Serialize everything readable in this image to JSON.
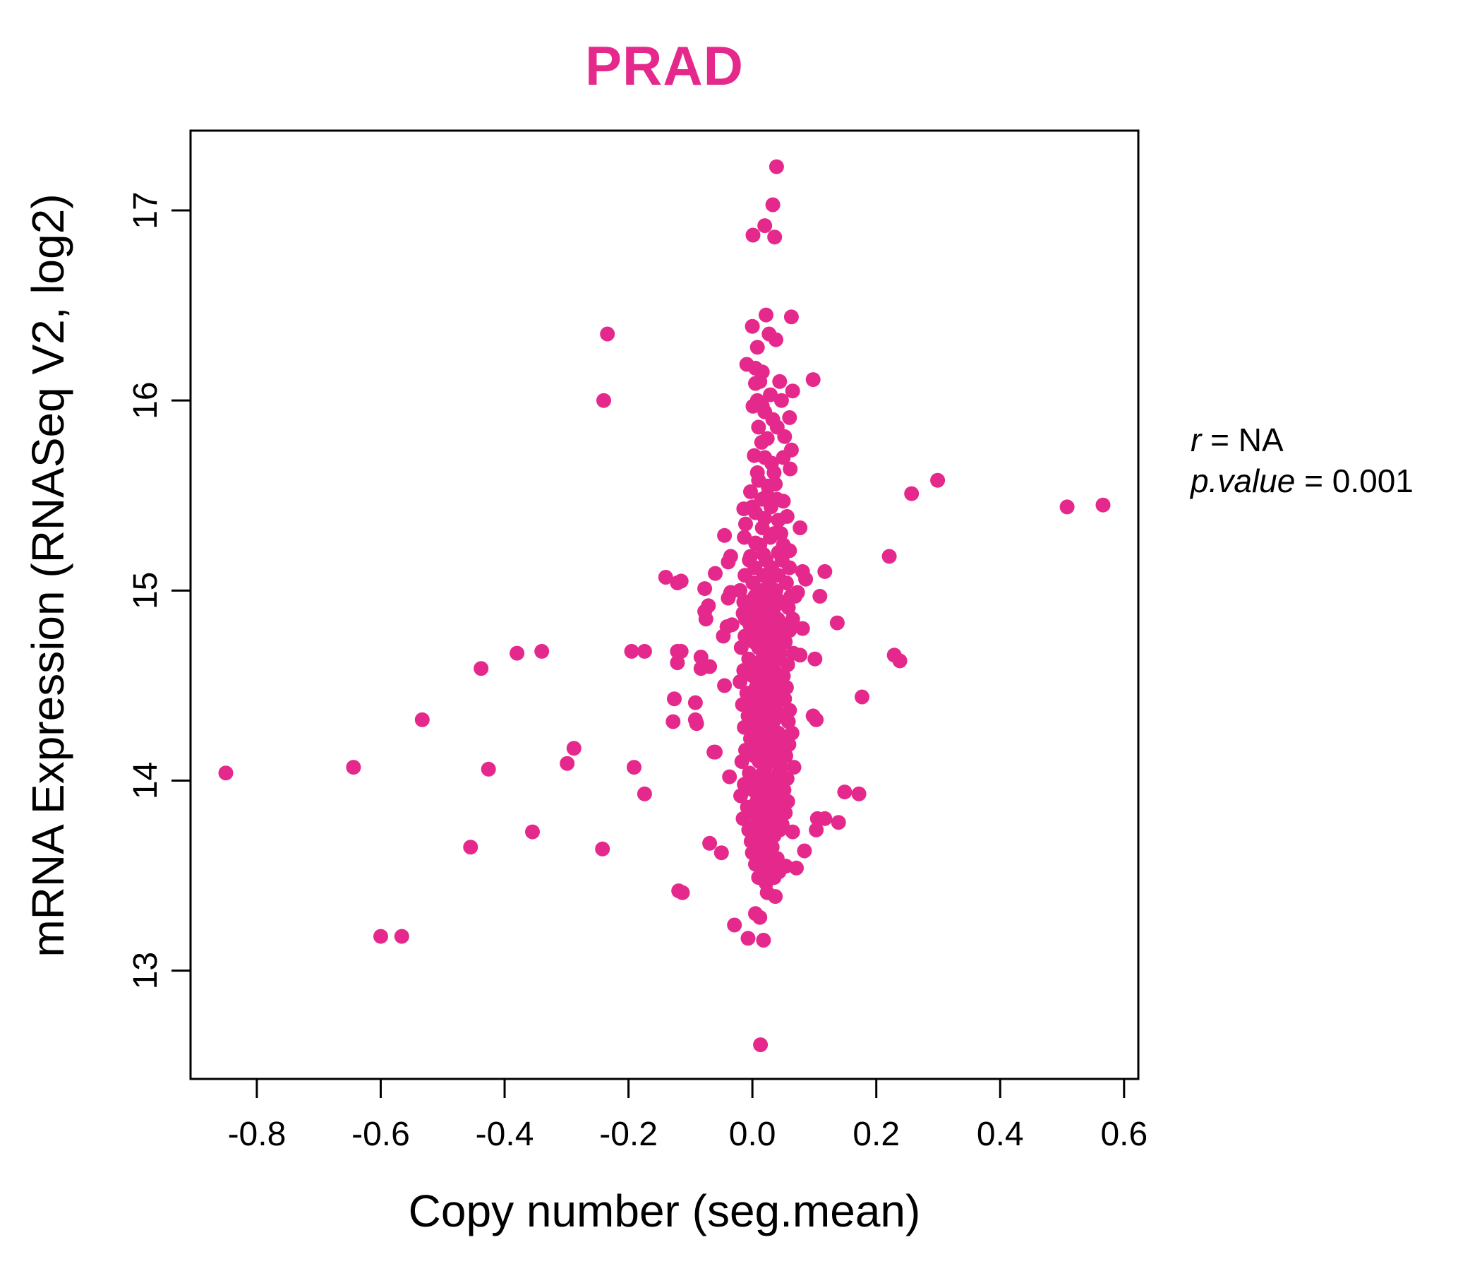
{
  "title": {
    "text": "PRAD"
  },
  "annotation": {
    "r_label": "r",
    "r_value": " = NA",
    "p_label": "p.value",
    "p_value": " = 0.001"
  },
  "colors": {
    "accent": "#E5298C",
    "axis": "#000000"
  },
  "chart_data": {
    "type": "scatter",
    "title": "PRAD",
    "xlabel": "Copy number (seg.mean)",
    "ylabel": "mRNA Expression (RNASeq V2, log2)",
    "xlim": [
      -0.907,
      0.623
    ],
    "ylim": [
      12.43,
      17.42
    ],
    "x_ticks": [
      {
        "v": -0.8,
        "label": "-0.8"
      },
      {
        "v": -0.6,
        "label": "-0.6"
      },
      {
        "v": -0.4,
        "label": "-0.4"
      },
      {
        "v": -0.2,
        "label": "-0.2"
      },
      {
        "v": 0.0,
        "label": "0.0"
      },
      {
        "v": 0.2,
        "label": "0.2"
      },
      {
        "v": 0.4,
        "label": "0.4"
      },
      {
        "v": 0.6,
        "label": "0.6"
      }
    ],
    "y_ticks": [
      {
        "v": 13,
        "label": "13"
      },
      {
        "v": 14,
        "label": "14"
      },
      {
        "v": 15,
        "label": "15"
      },
      {
        "v": 16,
        "label": "16"
      },
      {
        "v": 17,
        "label": "17"
      }
    ],
    "grid": false,
    "legend": "none",
    "point_color": "#E5298C",
    "point_radius_px": 10.5,
    "stats": {
      "r": "NA",
      "p_value": 0.001
    },
    "points": [
      [
        -0.85,
        14.04
      ],
      [
        -0.644,
        14.07
      ],
      [
        -0.6,
        13.18
      ],
      [
        -0.566,
        13.18
      ],
      [
        -0.533,
        14.32
      ],
      [
        -0.455,
        13.65
      ],
      [
        -0.438,
        14.59
      ],
      [
        -0.426,
        14.06
      ],
      [
        -0.38,
        14.67
      ],
      [
        -0.355,
        13.73
      ],
      [
        -0.34,
        14.68
      ],
      [
        -0.299,
        14.09
      ],
      [
        -0.288,
        14.17
      ],
      [
        -0.242,
        13.64
      ],
      [
        -0.24,
        16.0
      ],
      [
        -0.234,
        16.35
      ],
      [
        -0.195,
        14.68
      ],
      [
        -0.191,
        14.07
      ],
      [
        -0.174,
        14.68
      ],
      [
        -0.174,
        13.93
      ],
      [
        -0.14,
        15.07
      ],
      [
        -0.128,
        14.31
      ],
      [
        -0.126,
        14.43
      ],
      [
        -0.121,
        15.04
      ],
      [
        -0.121,
        14.68
      ],
      [
        -0.121,
        14.62
      ],
      [
        -0.119,
        13.42
      ],
      [
        -0.115,
        15.05
      ],
      [
        -0.115,
        14.68
      ],
      [
        -0.113,
        13.41
      ],
      [
        -0.092,
        14.41
      ],
      [
        -0.092,
        14.32
      ],
      [
        -0.09,
        14.3
      ],
      [
        -0.083,
        14.65
      ],
      [
        -0.083,
        14.59
      ],
      [
        -0.077,
        15.01
      ],
      [
        -0.077,
        14.89
      ],
      [
        -0.075,
        14.85
      ],
      [
        -0.071,
        14.92
      ],
      [
        -0.069,
        14.6
      ],
      [
        -0.069,
        13.67
      ],
      [
        -0.062,
        14.15
      ],
      [
        -0.06,
        15.09
      ],
      [
        -0.06,
        14.15
      ],
      [
        -0.05,
        13.62
      ],
      [
        -0.047,
        14.76
      ],
      [
        -0.045,
        15.29
      ],
      [
        -0.045,
        14.5
      ],
      [
        -0.041,
        14.81
      ],
      [
        -0.039,
        15.15
      ],
      [
        -0.039,
        14.96
      ],
      [
        -0.037,
        14.02
      ],
      [
        -0.035,
        15.18
      ],
      [
        -0.035,
        14.99
      ],
      [
        -0.033,
        14.82
      ],
      [
        -0.029,
        13.24
      ],
      [
        -0.014,
        15.43
      ],
      [
        -0.014,
        14.94
      ],
      [
        -0.013,
        15.28
      ],
      [
        -0.011,
        15.35
      ],
      [
        -0.011,
        14.85
      ],
      [
        -0.007,
        13.17
      ],
      [
        -0.003,
        15.52
      ],
      [
        -0.003,
        15.18
      ],
      [
        0.039,
        17.23
      ],
      [
        0.033,
        17.03
      ],
      [
        0.02,
        16.92
      ],
      [
        0.001,
        16.87
      ],
      [
        0.036,
        16.86
      ],
      [
        0.022,
        16.45
      ],
      [
        0.063,
        16.44
      ],
      [
        0.0,
        16.39
      ],
      [
        0.027,
        16.35
      ],
      [
        0.038,
        16.32
      ],
      [
        0.008,
        16.28
      ],
      [
        -0.009,
        16.19
      ],
      [
        0.005,
        16.17
      ],
      [
        0.016,
        16.15
      ],
      [
        0.098,
        16.11
      ],
      [
        0.005,
        16.09
      ],
      [
        0.065,
        16.05
      ],
      [
        0.029,
        16.03
      ],
      [
        0.001,
        15.97
      ],
      [
        0.016,
        15.97
      ],
      [
        0.06,
        15.91
      ],
      [
        0.033,
        15.9
      ],
      [
        0.052,
        15.81
      ],
      [
        0.024,
        15.8
      ],
      [
        0.063,
        15.74
      ],
      [
        0.003,
        15.71
      ],
      [
        0.031,
        15.67
      ],
      [
        0.061,
        15.64
      ],
      [
        0.01,
        15.58
      ],
      [
        0.037,
        15.56
      ],
      [
        0.024,
        15.5
      ],
      [
        0.05,
        15.47
      ],
      [
        0.005,
        15.41
      ],
      [
        0.056,
        15.39
      ],
      [
        0.042,
        15.37
      ],
      [
        0.016,
        15.33
      ],
      [
        0.077,
        15.33
      ],
      [
        0.029,
        15.28
      ],
      [
        0.005,
        15.25
      ],
      [
        0.046,
        15.3
      ],
      [
        0.018,
        15.19
      ],
      [
        0.042,
        15.2
      ],
      [
        0.06,
        15.21
      ],
      [
        0.086,
        15.06
      ],
      [
        0.081,
        15.1
      ],
      [
        0.117,
        15.1
      ],
      [
        0.109,
        14.97
      ],
      [
        0.073,
        14.99
      ],
      [
        0.069,
        14.97
      ],
      [
        0.101,
        14.64
      ],
      [
        0.081,
        14.8
      ],
      [
        0.077,
        14.66
      ],
      [
        0.098,
        14.34
      ],
      [
        0.103,
        14.32
      ],
      [
        0.137,
        14.83
      ],
      [
        0.177,
        14.44
      ],
      [
        0.221,
        15.18
      ],
      [
        0.229,
        14.66
      ],
      [
        0.238,
        14.63
      ],
      [
        0.257,
        15.51
      ],
      [
        0.299,
        15.58
      ],
      [
        0.508,
        15.44
      ],
      [
        0.566,
        15.45
      ],
      [
        0.084,
        13.63
      ],
      [
        0.065,
        13.73
      ],
      [
        0.103,
        13.74
      ],
      [
        0.105,
        13.8
      ],
      [
        0.117,
        13.8
      ],
      [
        0.139,
        13.78
      ],
      [
        0.149,
        13.94
      ],
      [
        0.172,
        13.93
      ],
      [
        0.054,
        13.55
      ],
      [
        0.071,
        13.54
      ],
      [
        0.024,
        13.41
      ],
      [
        0.037,
        13.39
      ],
      [
        0.012,
        13.28
      ],
      [
        0.005,
        13.3
      ],
      [
        0.018,
        13.16
      ],
      [
        0.013,
        12.61
      ],
      [
        -0.005,
        15.16
      ],
      [
        0.022,
        15.16
      ],
      [
        0.048,
        15.16
      ],
      [
        0.004,
        15.12
      ],
      [
        0.031,
        15.12
      ],
      [
        0.06,
        15.12
      ],
      [
        -0.012,
        15.08
      ],
      [
        0.018,
        15.08
      ],
      [
        0.042,
        15.08
      ],
      [
        0.001,
        15.04
      ],
      [
        0.027,
        15.04
      ],
      [
        0.055,
        15.04
      ],
      [
        -0.02,
        15.0
      ],
      [
        0.012,
        15.0
      ],
      [
        0.038,
        15.0
      ],
      [
        0.004,
        14.97
      ],
      [
        0.03,
        14.97
      ],
      [
        0.062,
        14.97
      ],
      [
        -0.008,
        14.94
      ],
      [
        0.02,
        14.94
      ],
      [
        0.047,
        14.94
      ],
      [
        0.009,
        14.91
      ],
      [
        0.035,
        14.91
      ],
      [
        0.058,
        14.91
      ],
      [
        -0.015,
        14.88
      ],
      [
        0.003,
        14.88
      ],
      [
        0.027,
        14.88
      ],
      [
        0.016,
        14.85
      ],
      [
        0.041,
        14.85
      ],
      [
        0.065,
        14.85
      ],
      [
        -0.004,
        14.82
      ],
      [
        0.022,
        14.82
      ],
      [
        0.05,
        14.82
      ],
      [
        0.008,
        14.79
      ],
      [
        0.033,
        14.79
      ],
      [
        0.06,
        14.79
      ],
      [
        -0.012,
        14.76
      ],
      [
        0.014,
        14.76
      ],
      [
        0.04,
        14.76
      ],
      [
        0.002,
        14.73
      ],
      [
        0.026,
        14.73
      ],
      [
        0.053,
        14.73
      ],
      [
        -0.018,
        14.7
      ],
      [
        0.01,
        14.7
      ],
      [
        0.036,
        14.7
      ],
      [
        0.02,
        14.67
      ],
      [
        0.045,
        14.67
      ],
      [
        0.066,
        14.67
      ],
      [
        -0.006,
        14.64
      ],
      [
        0.016,
        14.64
      ],
      [
        0.04,
        14.64
      ],
      [
        0.005,
        14.61
      ],
      [
        0.03,
        14.61
      ],
      [
        0.057,
        14.61
      ],
      [
        -0.014,
        14.58
      ],
      [
        0.01,
        14.58
      ],
      [
        0.035,
        14.58
      ],
      [
        0.001,
        14.55
      ],
      [
        0.024,
        14.55
      ],
      [
        0.05,
        14.55
      ],
      [
        -0.02,
        14.52
      ],
      [
        0.013,
        14.52
      ],
      [
        0.04,
        14.52
      ],
      [
        0.006,
        14.49
      ],
      [
        0.029,
        14.49
      ],
      [
        0.055,
        14.49
      ],
      [
        -0.009,
        14.46
      ],
      [
        0.018,
        14.46
      ],
      [
        0.044,
        14.46
      ],
      [
        0.002,
        14.43
      ],
      [
        0.027,
        14.43
      ],
      [
        0.052,
        14.43
      ],
      [
        -0.016,
        14.4
      ],
      [
        0.012,
        14.4
      ],
      [
        0.038,
        14.4
      ],
      [
        0.005,
        14.37
      ],
      [
        0.03,
        14.37
      ],
      [
        0.06,
        14.37
      ],
      [
        -0.007,
        14.34
      ],
      [
        0.02,
        14.34
      ],
      [
        0.046,
        14.34
      ],
      [
        0.01,
        14.31
      ],
      [
        0.034,
        14.31
      ],
      [
        0.058,
        14.31
      ],
      [
        -0.013,
        14.28
      ],
      [
        0.004,
        14.28
      ],
      [
        0.028,
        14.28
      ],
      [
        0.017,
        14.25
      ],
      [
        0.042,
        14.25
      ],
      [
        0.064,
        14.25
      ],
      [
        -0.003,
        14.22
      ],
      [
        0.023,
        14.22
      ],
      [
        0.05,
        14.22
      ],
      [
        0.009,
        14.19
      ],
      [
        0.033,
        14.19
      ],
      [
        0.059,
        14.19
      ],
      [
        -0.011,
        14.16
      ],
      [
        0.015,
        14.16
      ],
      [
        0.041,
        14.16
      ],
      [
        0.003,
        14.13
      ],
      [
        0.026,
        14.13
      ],
      [
        0.054,
        14.13
      ],
      [
        -0.017,
        14.1
      ],
      [
        0.011,
        14.1
      ],
      [
        0.037,
        14.1
      ],
      [
        0.021,
        14.07
      ],
      [
        0.046,
        14.07
      ],
      [
        0.067,
        14.07
      ],
      [
        -0.005,
        14.04
      ],
      [
        0.017,
        14.04
      ],
      [
        0.043,
        14.04
      ],
      [
        0.006,
        14.01
      ],
      [
        0.031,
        14.01
      ],
      [
        0.056,
        14.01
      ],
      [
        -0.013,
        13.98
      ],
      [
        0.01,
        13.98
      ],
      [
        0.036,
        13.98
      ],
      [
        0.001,
        13.95
      ],
      [
        0.025,
        13.95
      ],
      [
        0.051,
        13.95
      ],
      [
        -0.019,
        13.92
      ],
      [
        0.014,
        13.92
      ],
      [
        0.04,
        13.92
      ],
      [
        0.007,
        13.89
      ],
      [
        0.03,
        13.89
      ],
      [
        0.057,
        13.89
      ],
      [
        -0.008,
        13.86
      ],
      [
        0.019,
        13.86
      ],
      [
        0.045,
        13.86
      ],
      [
        0.003,
        13.83
      ],
      [
        0.028,
        13.83
      ],
      [
        0.053,
        13.83
      ],
      [
        -0.015,
        13.8
      ],
      [
        0.013,
        13.8
      ],
      [
        0.039,
        13.8
      ],
      [
        0.006,
        13.77
      ],
      [
        0.029,
        13.77
      ],
      [
        0.048,
        13.77
      ],
      [
        -0.006,
        13.74
      ],
      [
        0.021,
        13.74
      ],
      [
        0.044,
        13.74
      ],
      [
        0.011,
        13.71
      ],
      [
        0.035,
        13.71
      ],
      [
        -0.002,
        13.68
      ],
      [
        0.024,
        13.68
      ],
      [
        0.008,
        13.65
      ],
      [
        0.032,
        13.65
      ],
      [
        0.0,
        13.62
      ],
      [
        0.026,
        13.62
      ],
      [
        0.014,
        13.59
      ],
      [
        0.04,
        13.59
      ],
      [
        0.005,
        13.56
      ],
      [
        0.03,
        13.56
      ],
      [
        0.018,
        13.52
      ],
      [
        0.043,
        13.52
      ],
      [
        0.01,
        13.49
      ],
      [
        0.035,
        13.49
      ],
      [
        0.022,
        13.46
      ],
      [
        0.012,
        16.1
      ],
      [
        0.044,
        16.1
      ],
      [
        0.008,
        16.0
      ],
      [
        0.047,
        16.0
      ],
      [
        0.02,
        15.94
      ],
      [
        0.01,
        15.86
      ],
      [
        0.04,
        15.86
      ],
      [
        0.015,
        15.78
      ],
      [
        0.02,
        15.7
      ],
      [
        0.05,
        15.7
      ],
      [
        0.008,
        15.62
      ],
      [
        0.035,
        15.62
      ],
      [
        0.025,
        15.55
      ],
      [
        0.015,
        15.48
      ],
      [
        0.04,
        15.48
      ],
      [
        0.0,
        15.44
      ],
      [
        0.03,
        15.44
      ],
      [
        0.02,
        15.38
      ],
      [
        0.035,
        15.3
      ],
      [
        0.012,
        15.24
      ],
      [
        0.05,
        15.24
      ]
    ]
  }
}
